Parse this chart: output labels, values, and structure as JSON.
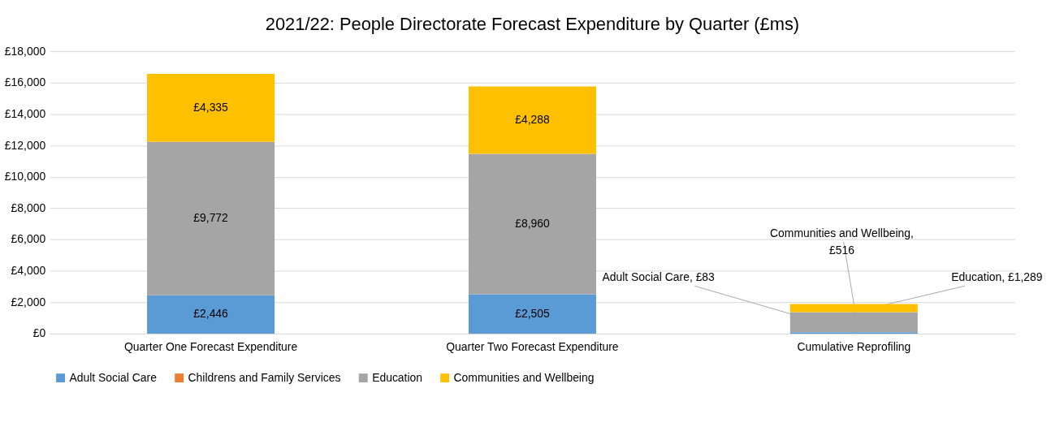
{
  "chart_data": {
    "type": "bar",
    "title": "2021/22:  People Directorate Forecast Expenditure by Quarter (£ms)",
    "categories": [
      "Quarter One Forecast Expenditure",
      "Quarter Two Forecast Expenditure",
      "Cumulative Reprofiling"
    ],
    "stacked": true,
    "series": [
      {
        "name": "Adult Social Care",
        "color": "#5b9bd5",
        "values": [
          2446,
          2505,
          83
        ],
        "value_labels": [
          "£2,446",
          "£2,505",
          null
        ]
      },
      {
        "name": "Childrens and Family Services",
        "color": "#ed7d31",
        "values": [
          null,
          null,
          null
        ]
      },
      {
        "name": "Education",
        "color": "#a5a5a5",
        "values": [
          9772,
          8960,
          1289
        ],
        "value_labels": [
          "£9,772",
          "£8,960",
          null
        ]
      },
      {
        "name": "Communities and Wellbeing",
        "color": "#ffc000",
        "values": [
          4335,
          4288,
          516
        ],
        "value_labels": [
          "£4,335",
          "£4,288",
          null
        ]
      }
    ],
    "ylim": [
      0,
      18000
    ],
    "yticks": [
      {
        "value": 0,
        "label": "£0"
      },
      {
        "value": 2000,
        "label": "£2,000"
      },
      {
        "value": 4000,
        "label": "£4,000"
      },
      {
        "value": 6000,
        "label": "£6,000"
      },
      {
        "value": 8000,
        "label": "£8,000"
      },
      {
        "value": 10000,
        "label": "£10,000"
      },
      {
        "value": 12000,
        "label": "£12,000"
      },
      {
        "value": 14000,
        "label": "£14,000"
      },
      {
        "value": 16000,
        "label": "£16,000"
      },
      {
        "value": 18000,
        "label": "£18,000"
      }
    ],
    "annotations": [
      {
        "text": "Adult Social Care, £83",
        "x": "Cumulative Reprofiling",
        "y": 83
      },
      {
        "text": "Communities and Wellbeing,\n£516",
        "x": "Cumulative Reprofiling",
        "y": 1888
      },
      {
        "text": "Education, £1,289",
        "x": "Cumulative Reprofiling",
        "y": 1372
      }
    ],
    "grid": "y",
    "legend": "bottom"
  }
}
